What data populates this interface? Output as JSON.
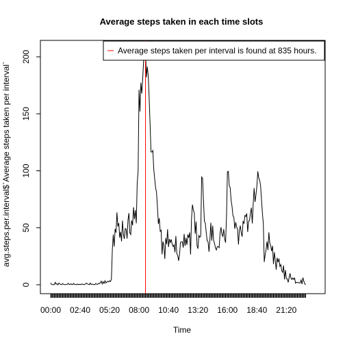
{
  "chart_data": {
    "type": "line",
    "title": "Average steps taken in each time slots",
    "xlabel": "Time",
    "ylabel": "avg.steps.per.interval$`Average steps taken per interval`",
    "xlim": [
      0,
      287
    ],
    "ylim": [
      0,
      206
    ],
    "x_tick_labels": [
      "00:00",
      "02:40",
      "05:20",
      "08:00",
      "10:40",
      "13:20",
      "16:00",
      "18:40",
      "21:20"
    ],
    "x_tick_label_index": [
      0,
      32,
      64,
      96,
      128,
      160,
      192,
      224,
      256
    ],
    "y_ticks": [
      0,
      50,
      100,
      150,
      200
    ],
    "y_tick_labels": [
      "0",
      "50",
      "100",
      "150",
      "200"
    ],
    "grid": false,
    "legend": {
      "position": "top-right",
      "entries": [
        {
          "label": "Average steps taken per interval is found at 835 hours.",
          "color": "#ff0000"
        }
      ]
    },
    "vline": {
      "x_index": 103,
      "label": "835",
      "color": "#ff0000"
    },
    "series": [
      {
        "color": "#000000",
        "values": [
          1.7,
          0.3,
          0.1,
          0.2,
          0.1,
          2.1,
          0.5,
          0.9,
          0.0,
          1.5,
          0.8,
          0.2,
          0.1,
          1.1,
          0.4,
          0.3,
          0.1,
          0.2,
          0.4,
          1.3,
          0.3,
          0.3,
          0.9,
          0.1,
          0.3,
          1.2,
          0.3,
          0.2,
          0.1,
          0.6,
          0.2,
          0.4,
          0.3,
          0.2,
          0.8,
          0.4,
          0.1,
          0.2,
          0.9,
          1.5,
          0.7,
          0.4,
          0.1,
          1.5,
          0.3,
          0.6,
          0.2,
          0.2,
          0.1,
          1.2,
          0.4,
          0.3,
          1.3,
          0.9,
          1.9,
          3.2,
          0.7,
          2.7,
          1.2,
          3.5,
          1.6,
          2.4,
          3.1,
          2.5,
          3.5,
          2.8,
          5.1,
          30.8,
          44.0,
          33.5,
          49.0,
          45.7,
          63.5,
          51.2,
          54.1,
          41.3,
          46.4,
          38.1,
          56.3,
          44.4,
          40.2,
          49.3,
          48.8,
          40.5,
          56.8,
          62.9,
          45.6,
          44.1,
          56.4,
          52.2,
          68.0,
          57.6,
          65.4,
          53.9,
          89.2,
          99.6,
          171.2,
          152.0,
          177.3,
          167.8,
          181.2,
          196.7,
          204.4,
          206.2,
          182.0,
          191.3,
          183.4,
          163.9,
          140.8,
          116.6,
          116.4,
          117.8,
          101.3,
          92.9,
          85.2,
          80.9,
          68.1,
          53.3,
          58.4,
          46.8,
          47.8,
          26.7,
          37.9,
          34.3,
          22.7,
          41.0,
          35.5,
          48.7,
          33.1,
          40.2,
          37.1,
          39.8,
          35.7,
          33.5,
          35.0,
          28.6,
          42.8,
          27.3,
          25.8,
          21.1,
          26.7,
          37.3,
          37.7,
          37.7,
          32.6,
          44.6,
          34.2,
          41.0,
          35.0,
          44.1,
          41.2,
          45.9,
          26.5,
          57.9,
          70.3,
          65.6,
          63.1,
          44.8,
          55.4,
          34.2,
          31.6,
          43.2,
          41.7,
          42.7,
          94.5,
          93.4,
          73.6,
          55.5,
          54.2,
          45.8,
          38.6,
          37.6,
          28.9,
          40.1,
          54.4,
          38.7,
          51.8,
          38.9,
          36.3,
          32.2,
          30.5,
          33.6,
          33.4,
          32.5,
          44.9,
          50.5,
          44.3,
          42.5,
          48.8,
          40.3,
          36.9,
          59.7,
          99.0,
          99.6,
          86.8,
          85.3,
          74.0,
          68.9,
          60.5,
          59.2,
          49.1,
          54.9,
          50.6,
          48.9,
          35.3,
          47.7,
          51.8,
          45.7,
          42.2,
          55.9,
          53.6,
          60.8,
          59.9,
          62.6,
          46.3,
          55.5,
          56.7,
          62.8,
          67.6,
          53.8,
          70.6,
          84.9,
          72.7,
          78.9,
          86.6,
          99.5,
          93.7,
          91.8,
          87.2,
          74.9,
          63.1,
          53.6,
          20.0,
          26.6,
          30.9,
          37.9,
          30.4,
          46.0,
          36.7,
          34.4,
          29.5,
          34.1,
          18.2,
          28.6,
          21.2,
          13.2,
          23.7,
          19.8,
          23.0,
          16.1,
          17.7,
          12.3,
          10.8,
          16.9,
          4.7,
          12.9,
          5.4,
          5.3,
          2.1,
          6.0,
          10.0,
          5.9,
          4.6,
          6.0,
          4.7,
          5.9,
          1.4,
          2.2,
          1.9,
          2.1,
          1.5,
          1.6,
          4.1,
          0.6,
          6.3,
          3.1,
          0.8,
          0.0
        ]
      }
    ]
  }
}
